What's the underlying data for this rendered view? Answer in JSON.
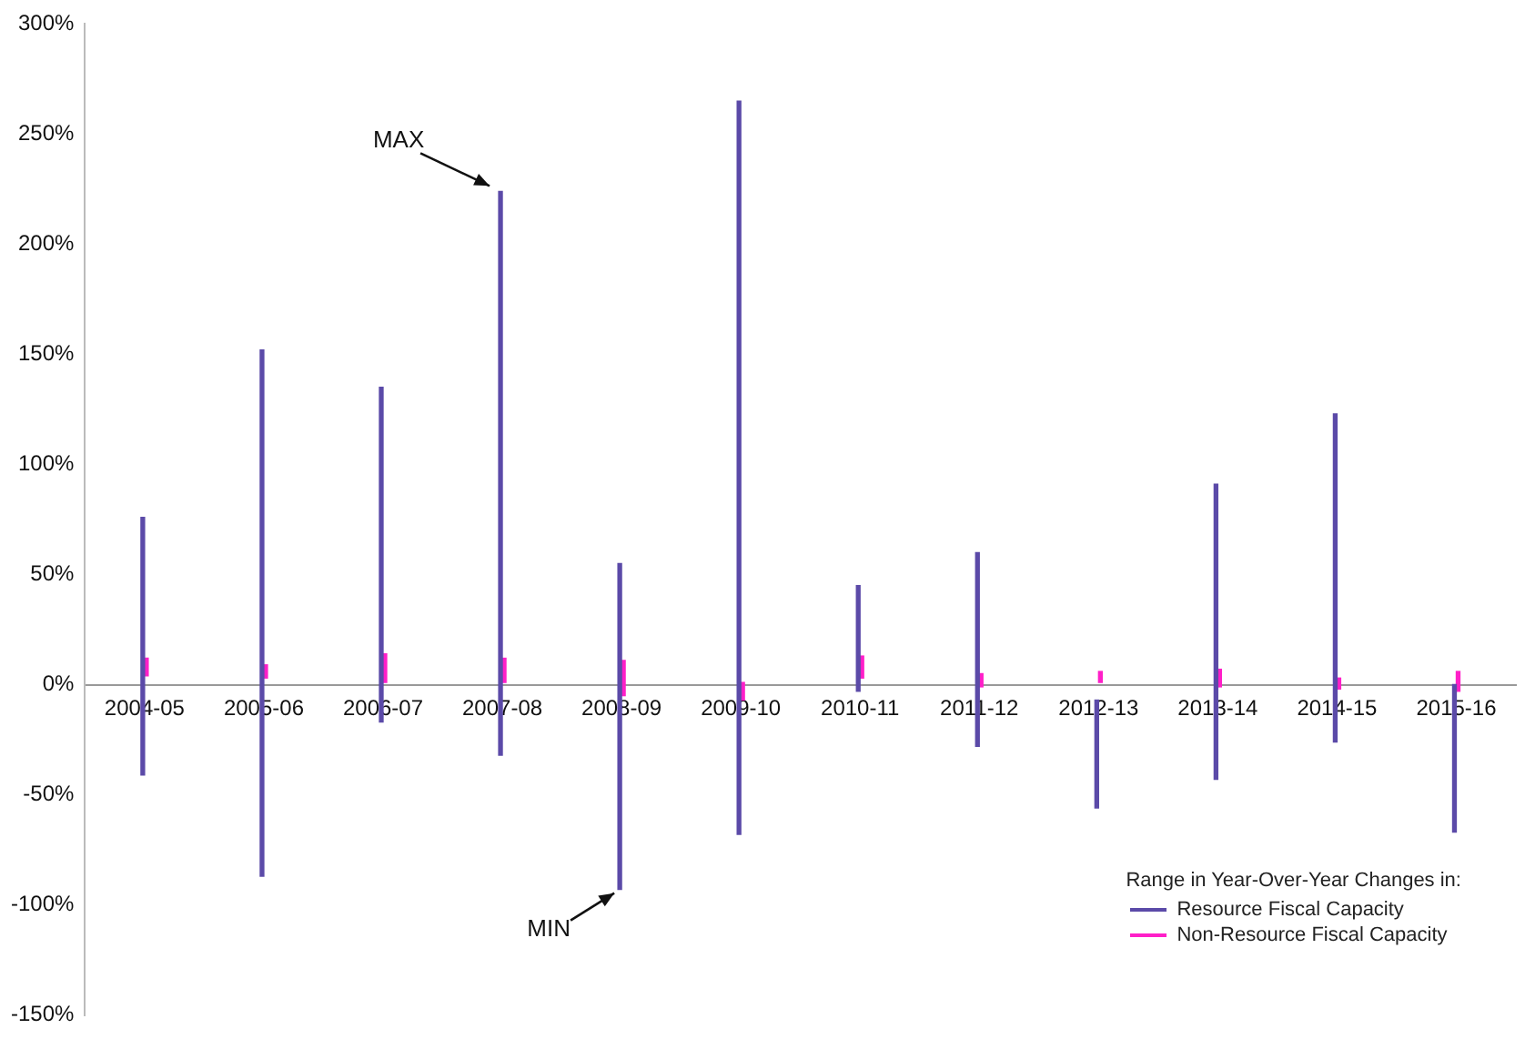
{
  "chart_data": {
    "type": "bar",
    "categories": [
      "2004-05",
      "2005-06",
      "2006-07",
      "2007-08",
      "2008-09",
      "2009-10",
      "2010-11",
      "2011-12",
      "2012-13",
      "2013-14",
      "2014-15",
      "2015-16"
    ],
    "series": [
      {
        "name": "Resource Fiscal Capacity",
        "color": "#5b4aa8",
        "base": [
          -41,
          -87,
          -17,
          -32,
          -93,
          -68,
          -3,
          -28,
          -56,
          -43,
          -26,
          -67
        ],
        "values": [
          117,
          239,
          152,
          256,
          148,
          333,
          48,
          88,
          49,
          134,
          149,
          67
        ]
      },
      {
        "name": "Non-Resource Fiscal Capacity",
        "color": "#ff1fc8",
        "base": [
          4,
          3,
          1,
          1,
          -5,
          -7,
          3,
          -1,
          1,
          -1,
          -2,
          -3
        ],
        "values": [
          8,
          6,
          13,
          11,
          16,
          8,
          10,
          6,
          5,
          8,
          5,
          9
        ]
      }
    ],
    "ylim": [
      -150,
      300
    ],
    "yticks": [
      {
        "value": -150,
        "label": "-150%"
      },
      {
        "value": -100,
        "label": "-100%"
      },
      {
        "value": -50,
        "label": "-50%"
      },
      {
        "value": 0,
        "label": "0%"
      },
      {
        "value": 50,
        "label": "50%"
      },
      {
        "value": 100,
        "label": "100%"
      },
      {
        "value": 150,
        "label": "150%"
      },
      {
        "value": 200,
        "label": "200%"
      },
      {
        "value": 250,
        "label": "250%"
      },
      {
        "value": 300,
        "label": "300%"
      }
    ],
    "annotations": [
      {
        "text": "MAX",
        "x": "2007-08",
        "y": 224
      },
      {
        "text": "MIN",
        "x": "2008-09",
        "y": -93
      }
    ],
    "legend_title": "Range in Year-Over-Year Changes in:",
    "legend": "bottom right",
    "grid": false
  }
}
